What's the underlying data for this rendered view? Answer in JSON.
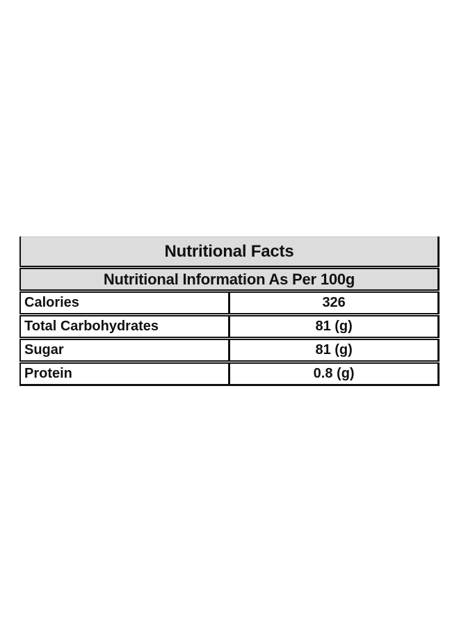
{
  "table": {
    "title": "Nutritional Facts",
    "subtitle": "Nutritional Information As Per 100g",
    "rows": [
      {
        "label": "Calories",
        "value": "326"
      },
      {
        "label": "Total Carbohydrates",
        "value": "81 (g)"
      },
      {
        "label": "Sugar",
        "value": "81 (g)"
      },
      {
        "label": "Protein",
        "value": "0.8 (g)"
      }
    ]
  },
  "colors": {
    "page_bg": "#ffffff",
    "header_bg": "#dcdcdc",
    "border": "#111111",
    "text": "#111111"
  }
}
